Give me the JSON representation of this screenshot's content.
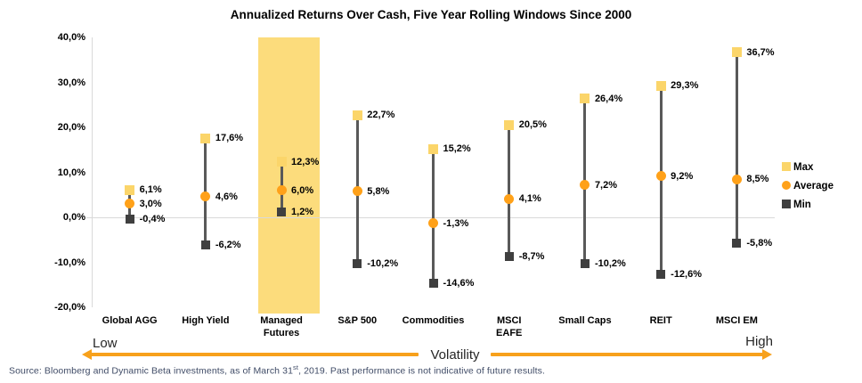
{
  "chart_data": {
    "type": "scatter",
    "subtype": "min-average-max range (hi-lo lollipop)",
    "title": "Annualized Returns Over Cash, Five Year Rolling Windows Since 2000",
    "categories": [
      "Global AGG",
      "High Yield",
      "Managed Futures",
      "S&P 500",
      "Commodities",
      "MSCI EAFE",
      "Small Caps",
      "REIT",
      "MSCI EM"
    ],
    "categories_display": [
      "Global AGG",
      "High Yield",
      "Managed\nFutures",
      "S&P 500",
      "Commodities",
      "MSCI\nEAFE",
      "Small Caps",
      "REIT",
      "MSCI EM"
    ],
    "series": [
      {
        "name": "Max",
        "marker": "square",
        "color": "#FBD56A",
        "values": [
          6.1,
          17.6,
          12.3,
          22.7,
          15.2,
          20.5,
          26.4,
          29.3,
          36.7
        ],
        "labels": [
          "6,1%",
          "17,6%",
          "12,3%",
          "22,7%",
          "15,2%",
          "20,5%",
          "26,4%",
          "29,3%",
          "36,7%"
        ]
      },
      {
        "name": "Average",
        "marker": "circle",
        "color": "#FFA119",
        "values": [
          3.0,
          4.6,
          6.0,
          5.8,
          -1.3,
          4.1,
          7.2,
          9.2,
          8.5
        ],
        "labels": [
          "3,0%",
          "4,6%",
          "6,0%",
          "5,8%",
          "-1,3%",
          "4,1%",
          "7,2%",
          "9,2%",
          "8,5%"
        ]
      },
      {
        "name": "Min",
        "marker": "square",
        "color": "#3F3F3F",
        "values": [
          -0.4,
          -6.2,
          1.2,
          -10.2,
          -14.6,
          -8.7,
          -10.2,
          -12.6,
          -5.8
        ],
        "labels": [
          "-0,4%",
          "-6,2%",
          "1,2%",
          "-10,2%",
          "-14,6%",
          "-8,7%",
          "-10,2%",
          "-12,6%",
          "-5,8%"
        ]
      }
    ],
    "ylim": [
      -20,
      40
    ],
    "yticks": [
      {
        "value": 40,
        "label": "40,0%"
      },
      {
        "value": 30,
        "label": "30,0%"
      },
      {
        "value": 20,
        "label": "20,0%"
      },
      {
        "value": 10,
        "label": "10,0%"
      },
      {
        "value": 0,
        "label": "0,0%"
      },
      {
        "value": -10,
        "label": "-10,0%"
      },
      {
        "value": -20,
        "label": "-20,0%"
      }
    ],
    "grid": "zero baseline only",
    "legend_position": "right",
    "highlight": {
      "category": "Managed Futures",
      "color": "#FCDC7C"
    },
    "stem_color": "#595959",
    "axis_color": "#D9D9D9"
  },
  "volatility_axis": {
    "low": "Low",
    "center": "Volatility",
    "high": "High",
    "arrow_color": "#F7A11C"
  },
  "source": {
    "prefix": "Source: Bloomberg and Dynamic Beta investments, as of March 31",
    "superscript": "st",
    "suffix": ", 2019. Past performance is not indicative of future results."
  }
}
